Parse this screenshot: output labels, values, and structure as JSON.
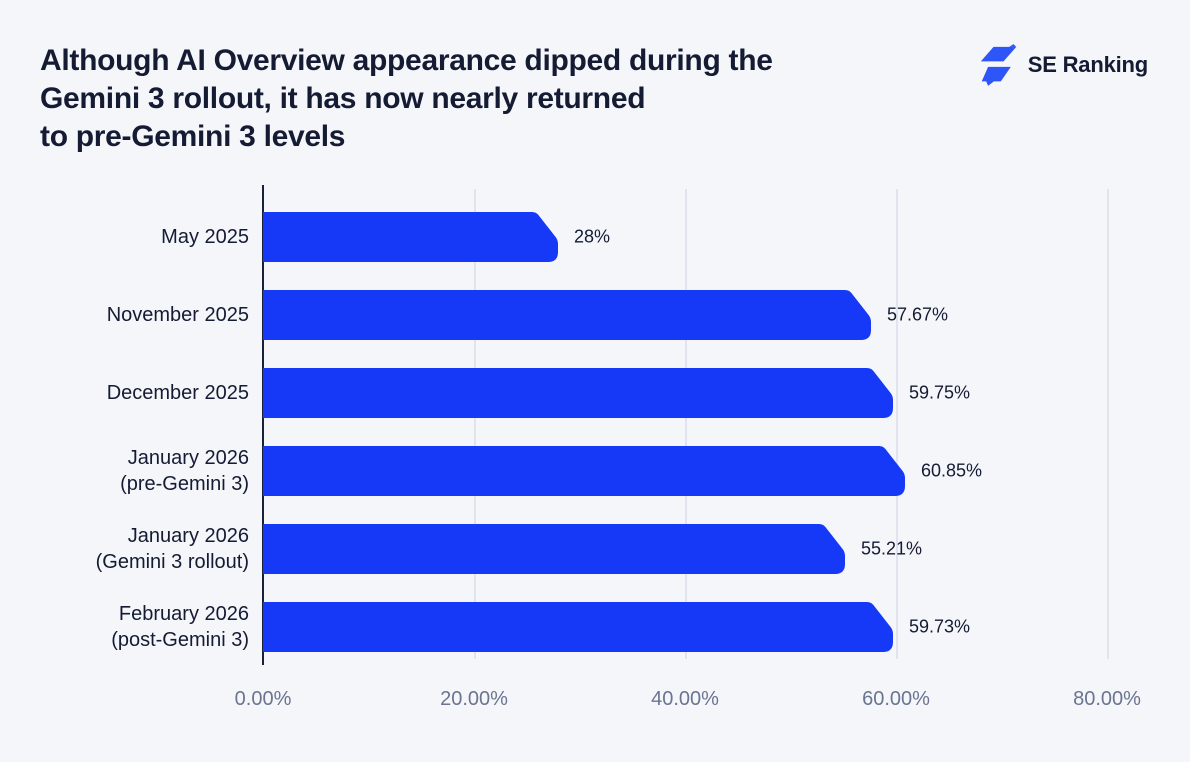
{
  "header": {
    "title_lines": [
      "Although AI Overview appearance dipped during the",
      "Gemini 3 rollout, it has now nearly returned",
      "to pre-Gemini 3 levels"
    ],
    "logo_text": "SE Ranking"
  },
  "colors": {
    "background": "#F4F6FA",
    "bar": "#1539F6",
    "text_dark": "#141B33",
    "tick_text": "#6B7490",
    "gridline": "#DFE4EF",
    "axis_line": "#1A2138",
    "logo_blue": "#2D55F8"
  },
  "chart_data": {
    "type": "bar",
    "orientation": "horizontal",
    "title": "Although AI Overview appearance dipped during the Gemini 3 rollout, it has now nearly returned to pre-Gemini 3 levels",
    "xlabel": "",
    "ylabel": "",
    "xlim": [
      0,
      82.5
    ],
    "grid": true,
    "legend": false,
    "rows": [
      {
        "label_lines": [
          "May 2025"
        ],
        "value": 28,
        "value_label": "28%"
      },
      {
        "label_lines": [
          "November 2025"
        ],
        "value": 57.67,
        "value_label": "57.67%"
      },
      {
        "label_lines": [
          "December 2025"
        ],
        "value": 59.75,
        "value_label": "59.75%"
      },
      {
        "label_lines": [
          "January 2026",
          "(pre-Gemini 3)"
        ],
        "value": 60.85,
        "value_label": "60.85%"
      },
      {
        "label_lines": [
          "January 2026",
          "(Gemini 3 rollout)"
        ],
        "value": 55.21,
        "value_label": "55.21%"
      },
      {
        "label_lines": [
          "February 2026",
          "(post-Gemini 3)"
        ],
        "value": 59.73,
        "value_label": "59.73%"
      }
    ],
    "x_ticks": [
      {
        "value": 0,
        "label": "0.00%"
      },
      {
        "value": 20,
        "label": "20.00%"
      },
      {
        "value": 40,
        "label": "40.00%"
      },
      {
        "value": 60,
        "label": "60.00%"
      },
      {
        "value": 80,
        "label": "80.00%"
      }
    ]
  }
}
